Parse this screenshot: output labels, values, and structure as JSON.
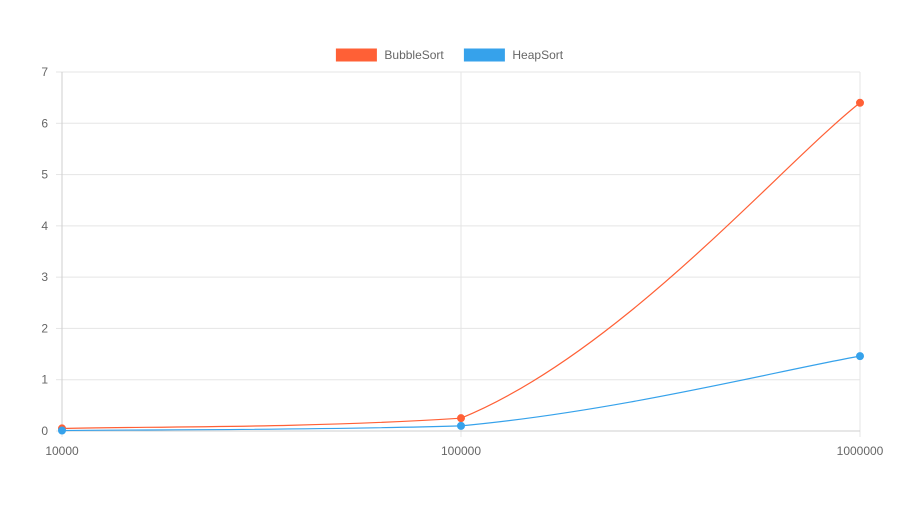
{
  "chart_data": {
    "type": "line",
    "title": "",
    "xlabel": "",
    "ylabel": "",
    "x": [
      "10000",
      "100000",
      "1000000"
    ],
    "ylim": [
      0,
      7
    ],
    "yticks": [
      "0",
      "1",
      "2",
      "3",
      "4",
      "5",
      "6",
      "7"
    ],
    "grid": true,
    "legend_position": "top-center",
    "series": [
      {
        "name": "BubbleSort",
        "color": "#ff6036",
        "values": [
          0.05,
          0.25,
          6.4
        ]
      },
      {
        "name": "HeapSort",
        "color": "#36a2eb",
        "values": [
          0.01,
          0.1,
          1.46
        ]
      }
    ]
  }
}
